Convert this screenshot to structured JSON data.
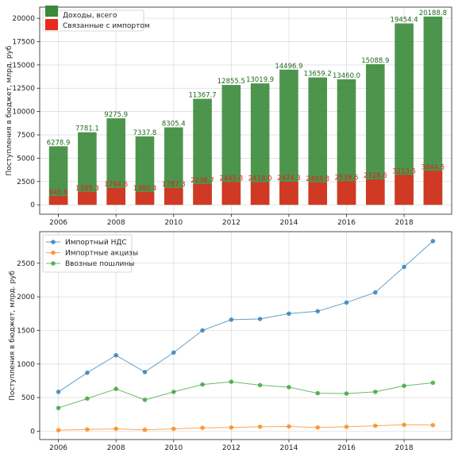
{
  "chart_data": [
    {
      "type": "bar",
      "x": [
        2006,
        2007,
        2008,
        2009,
        2010,
        2011,
        2012,
        2013,
        2014,
        2015,
        2016,
        2017,
        2018,
        2019
      ],
      "series": [
        {
          "name": "Доходы, всего",
          "color": "#3a8a3a",
          "values": [
            6278.9,
            7781.1,
            9275.9,
            7337.8,
            8305.4,
            11367.7,
            12855.5,
            13019.9,
            14496.9,
            13659.2,
            13460.0,
            15088.9,
            19454.4,
            20188.8
          ],
          "labels": [
            "6278.9",
            "7781.1",
            "9275.9",
            "7337.8",
            "8305.4",
            "11367.7",
            "12855.5",
            "13019.9",
            "14496.9",
            "13659.2",
            "13460.0",
            "15088.9",
            "19454.4",
            "20188.8"
          ]
        },
        {
          "name": "Связанные с импортом",
          "color": "#e8291c",
          "values": [
            945.6,
            1385.3,
            1794.6,
            1360.4,
            1787.3,
            2236.7,
            2445.8,
            2418.0,
            2474.3,
            2404.8,
            2539.6,
            2728.6,
            3213.5,
            3644.5
          ],
          "labels": [
            "945.6",
            "1385.3",
            "1794.6",
            "1360.4",
            "1787.3",
            "2236.7",
            "2445.8",
            "2418.0",
            "2474.3",
            "2404.8",
            "2539.6",
            "2728.6",
            "3213.5",
            "3644.5"
          ]
        }
      ],
      "ylabel": "Поступления в бюджет, млрд. руб",
      "xticks": [
        "2006",
        "2008",
        "2010",
        "2012",
        "2014",
        "2016",
        "2018"
      ],
      "yticks": [
        "0",
        "2500",
        "5000",
        "7500",
        "10000",
        "12500",
        "15000",
        "17500",
        "20000"
      ],
      "xlim": [
        2005.35,
        2019.65
      ],
      "ylim": [
        -1009.44,
        21198.24
      ],
      "grid": true,
      "legend": "top-left"
    },
    {
      "type": "line",
      "x": [
        2006,
        2007,
        2008,
        2009,
        2010,
        2011,
        2012,
        2013,
        2014,
        2015,
        2016,
        2017,
        2018,
        2019
      ],
      "series": [
        {
          "name": "Импортный НДС",
          "color": "#1f77b4",
          "values": [
            585,
            870,
            1130,
            880,
            1170,
            1500,
            1660,
            1670,
            1750,
            1785,
            1915,
            2065,
            2445,
            2830
          ]
        },
        {
          "name": "Импортные акцизы",
          "color": "#ff7f0e",
          "values": [
            15,
            25,
            35,
            20,
            35,
            50,
            55,
            65,
            70,
            55,
            65,
            80,
            95,
            90
          ]
        },
        {
          "name": "Ввозные пошлины",
          "color": "#2ca02c",
          "values": [
            345,
            485,
            630,
            465,
            585,
            695,
            735,
            685,
            655,
            565,
            560,
            585,
            675,
            720
          ]
        }
      ],
      "ylabel": "Поступления в бюджет, млрд. руб",
      "xticks": [
        "2006",
        "2008",
        "2010",
        "2012",
        "2014",
        "2016",
        "2018"
      ],
      "yticks": [
        "0",
        "500",
        "1000",
        "1500",
        "2000",
        "2500"
      ],
      "xlim": [
        2005.35,
        2019.65
      ],
      "ylim": [
        -125,
        2970
      ],
      "grid": true,
      "legend": "top-left"
    }
  ]
}
